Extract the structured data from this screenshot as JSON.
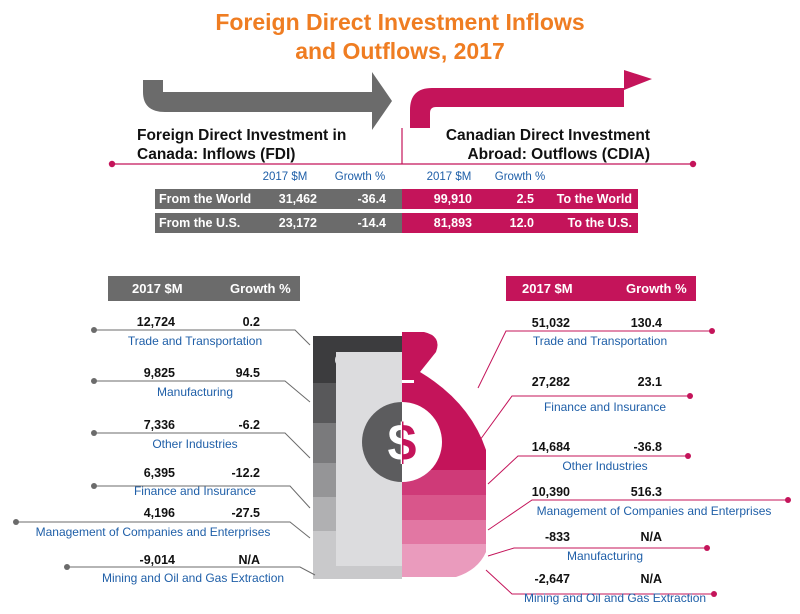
{
  "title": "Foreign Direct Investment Inflows and Outflows, 2017",
  "inflows_heading": "Foreign Direct Investment in Canada: Inflows (FDI)",
  "outflows_heading": "Canadian Direct Investment Abroad: Outflows (CDIA)",
  "colors": {
    "accent": "#c4145a",
    "gray": "#6b6b6b",
    "title": "#ef7d22",
    "label": "#1f5fa8"
  },
  "summary": {
    "col_headers": [
      "2017 $M",
      "Growth %",
      "2017 $M",
      "Growth %"
    ],
    "rows": [
      {
        "left_label": "From the World",
        "fdi_value": "31,462",
        "fdi_growth": "-36.4",
        "cdia_value": "99,910",
        "cdia_growth": "2.5",
        "right_label": "To the World"
      },
      {
        "left_label": "From the U.S.",
        "fdi_value": "23,172",
        "fdi_growth": "-14.4",
        "cdia_value": "81,893",
        "cdia_growth": "12.0",
        "right_label": "To the U.S."
      }
    ]
  },
  "chart_data": [
    {
      "type": "table",
      "title": "Foreign Direct Investment in Canada: Inflows (FDI)",
      "columns": [
        "2017 $M",
        "Growth %"
      ],
      "rows": [
        {
          "industry": "Trade and Transportation",
          "value": "12,724",
          "growth": "0.2"
        },
        {
          "industry": "Manufacturing",
          "value": "9,825",
          "growth": "94.5"
        },
        {
          "industry": "Other Industries",
          "value": "7,336",
          "growth": "-6.2"
        },
        {
          "industry": "Finance and Insurance",
          "value": "6,395",
          "growth": "-12.2"
        },
        {
          "industry": "Management of Companies and Enterprises",
          "value": "4,196",
          "growth": "-27.5"
        },
        {
          "industry": "Mining and Oil and Gas Extraction",
          "value": "-9,014",
          "growth": "N/A"
        }
      ]
    },
    {
      "type": "table",
      "title": "Canadian Direct Investment Abroad: Outflows (CDIA)",
      "columns": [
        "2017 $M",
        "Growth %"
      ],
      "rows": [
        {
          "industry": "Trade and Transportation",
          "value": "51,032",
          "growth": "130.4"
        },
        {
          "industry": "Finance and Insurance",
          "value": "27,282",
          "growth": "23.1"
        },
        {
          "industry": "Other Industries",
          "value": "14,684",
          "growth": "-36.8"
        },
        {
          "industry": "Management of Companies and Enterprises",
          "value": "10,390",
          "growth": "516.3"
        },
        {
          "industry": "Manufacturing",
          "value": "-833",
          "growth": "N/A"
        },
        {
          "industry": "Mining and Oil and Gas Extraction",
          "value": "-2,647",
          "growth": "N/A"
        }
      ]
    }
  ],
  "center_symbol": "$"
}
